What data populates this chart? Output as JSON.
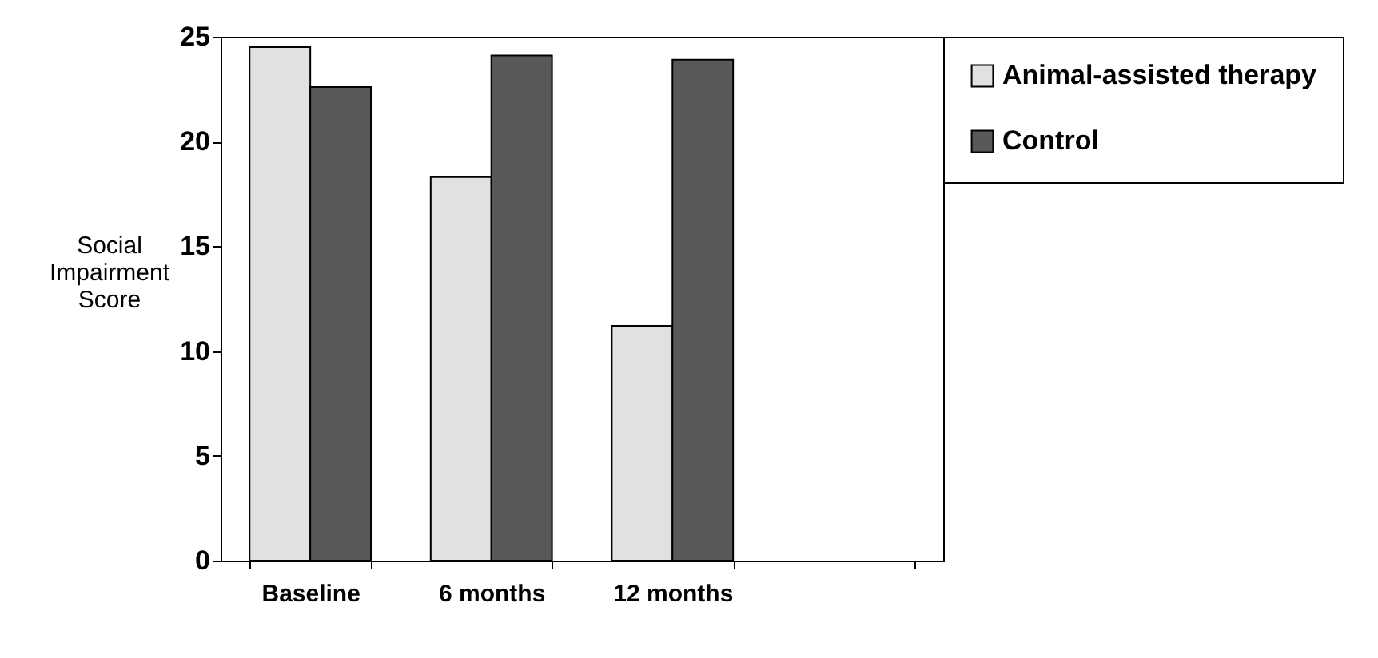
{
  "chart_data": {
    "type": "bar",
    "ylabel": "Social Impairment Score",
    "categories": [
      "Baseline",
      "6 months",
      "12 months",
      null
    ],
    "series": [
      {
        "name": "Animal-assisted therapy",
        "color": "#e0e1e3",
        "values": [
          24.5,
          18.3,
          11.2,
          null
        ]
      },
      {
        "name": "Control",
        "color": "#58585a",
        "values": [
          22.6,
          24.1,
          23.9,
          null
        ]
      }
    ],
    "ylim": [
      0,
      25
    ],
    "yticks": [
      0,
      5,
      10,
      15,
      20,
      25
    ],
    "grid": false,
    "legend": "right"
  }
}
